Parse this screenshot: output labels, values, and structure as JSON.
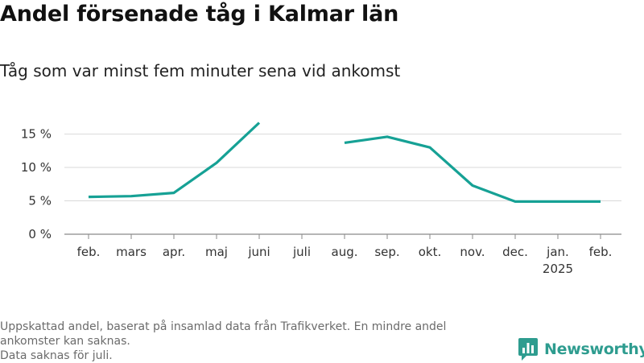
{
  "title": "Andel försenade tåg i Kalmar län",
  "subtitle": "Tåg som var minst fem minuter sena vid ankomst",
  "footer": {
    "note_line1": "Uppskattad andel, baserat på insamlad data från Trafikverket. En mindre andel ankomster kan saknas.",
    "note_line2": "Data saknas för juli."
  },
  "brand": {
    "name": "Newsworthy",
    "icon": "newsworthy-logo-icon",
    "color": "#2e9c8f"
  },
  "chart_data": {
    "type": "line",
    "categories": [
      "feb.",
      "mars",
      "apr.",
      "maj",
      "juni",
      "juli",
      "aug.",
      "sep.",
      "okt.",
      "nov.",
      "dec.",
      "jan.",
      "feb."
    ],
    "year_label": {
      "category_index": 11,
      "text": "2025"
    },
    "series": [
      {
        "values": [
          5.6,
          5.7,
          6.2,
          10.7,
          16.7,
          null,
          13.7,
          14.6,
          13.0,
          7.3,
          4.9,
          4.9,
          4.9
        ],
        "color": "#16a195"
      }
    ],
    "yticks": [
      0,
      5,
      10,
      15
    ],
    "ytick_labels": [
      "0 %",
      "5 %",
      "10 %",
      "15 %"
    ],
    "ylim": [
      0,
      17
    ],
    "xlabel": "",
    "ylabel": "",
    "grid": true,
    "legend": "none"
  }
}
